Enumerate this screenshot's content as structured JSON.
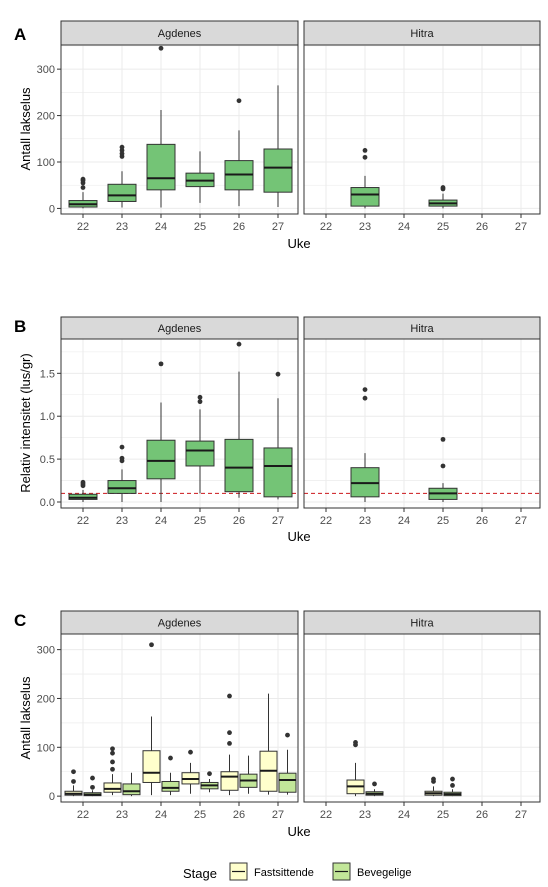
{
  "colors": {
    "green": "#74C476",
    "fastsittende": "#FFFFCC",
    "bevegelige": "#C2E699",
    "strip_fill": "#D9D9D9",
    "grid": "#EBEBEB",
    "threshold_line": "#CB181D"
  },
  "legend": {
    "title": "Stage",
    "items": [
      {
        "label": "Fastsittende",
        "color": "#FFFFCC"
      },
      {
        "label": "Bevegelige",
        "color": "#C2E699"
      }
    ]
  },
  "chart_data": [
    {
      "tag": "A",
      "type": "boxplot",
      "facets": [
        "Agdenes",
        "Hitra"
      ],
      "categories": [
        "22",
        "23",
        "24",
        "25",
        "26",
        "27"
      ],
      "xlabel": "Uke",
      "ylabel": "Antall lakselus",
      "ylim": [
        -12,
        352
      ],
      "yticks": [
        0,
        100,
        200,
        300
      ],
      "grid": true,
      "series": [
        {
          "color": "#74C476",
          "facet": "Agdenes",
          "boxes": [
            {
              "x": "22",
              "min": 0,
              "q1": 3,
              "median": 9,
              "q3": 17,
              "max": 35,
              "outliers": [
                45,
                55,
                60,
                63
              ]
            },
            {
              "x": "23",
              "min": 2,
              "q1": 15,
              "median": 28,
              "q3": 52,
              "max": 80,
              "outliers": [
                112,
                118,
                125,
                132
              ]
            },
            {
              "x": "24",
              "min": 2,
              "q1": 40,
              "median": 65,
              "q3": 138,
              "max": 212,
              "outliers": [
                345
              ]
            },
            {
              "x": "25",
              "min": 12,
              "q1": 47,
              "median": 60,
              "q3": 76,
              "max": 123,
              "outliers": []
            },
            {
              "x": "26",
              "min": 5,
              "q1": 40,
              "median": 73,
              "q3": 103,
              "max": 168,
              "outliers": [
                232
              ]
            },
            {
              "x": "27",
              "min": 3,
              "q1": 35,
              "median": 88,
              "q3": 128,
              "max": 265,
              "outliers": []
            }
          ]
        },
        {
          "color": "#74C476",
          "facet": "Hitra",
          "boxes": [
            {
              "x": "23",
              "min": 0,
              "q1": 5,
              "median": 30,
              "q3": 45,
              "max": 70,
              "outliers": [
                110,
                125
              ]
            },
            {
              "x": "25",
              "min": 0,
              "q1": 5,
              "median": 11,
              "q3": 18,
              "max": 32,
              "outliers": [
                42,
                45
              ]
            }
          ]
        }
      ]
    },
    {
      "tag": "B",
      "type": "boxplot",
      "facets": [
        "Agdenes",
        "Hitra"
      ],
      "categories": [
        "22",
        "23",
        "24",
        "25",
        "26",
        "27"
      ],
      "xlabel": "Uke",
      "ylabel": "Relativ intensitet (lus/gr)",
      "ylim": [
        -0.07,
        1.9
      ],
      "yticks": [
        0.0,
        0.5,
        1.0,
        1.5
      ],
      "ytick_labels": [
        "0.0",
        "0.5",
        "1.0",
        "1.5"
      ],
      "hline": 0.1,
      "grid": true,
      "series": [
        {
          "color": "#74C476",
          "facet": "Agdenes",
          "boxes": [
            {
              "x": "22",
              "min": 0.0,
              "q1": 0.03,
              "median": 0.05,
              "q3": 0.09,
              "max": 0.14,
              "outliers": [
                0.19,
                0.21,
                0.23
              ]
            },
            {
              "x": "23",
              "min": 0.0,
              "q1": 0.1,
              "median": 0.16,
              "q3": 0.25,
              "max": 0.38,
              "outliers": [
                0.48,
                0.51,
                0.64
              ]
            },
            {
              "x": "24",
              "min": 0.0,
              "q1": 0.27,
              "median": 0.48,
              "q3": 0.72,
              "max": 1.16,
              "outliers": [
                1.61
              ]
            },
            {
              "x": "25",
              "min": 0.1,
              "q1": 0.42,
              "median": 0.6,
              "q3": 0.71,
              "max": 1.08,
              "outliers": [
                1.17,
                1.22
              ]
            },
            {
              "x": "26",
              "min": 0.05,
              "q1": 0.12,
              "median": 0.4,
              "q3": 0.73,
              "max": 1.52,
              "outliers": [
                1.84
              ]
            },
            {
              "x": "27",
              "min": 0.03,
              "q1": 0.06,
              "median": 0.42,
              "q3": 0.63,
              "max": 1.21,
              "outliers": [
                1.49
              ]
            }
          ]
        },
        {
          "color": "#74C476",
          "facet": "Hitra",
          "boxes": [
            {
              "x": "23",
              "min": 0.0,
              "q1": 0.06,
              "median": 0.22,
              "q3": 0.4,
              "max": 0.57,
              "outliers": [
                1.21,
                1.31
              ]
            },
            {
              "x": "25",
              "min": 0.0,
              "q1": 0.03,
              "median": 0.1,
              "q3": 0.16,
              "max": 0.22,
              "outliers": [
                0.42,
                0.73
              ]
            }
          ]
        }
      ]
    },
    {
      "tag": "C",
      "type": "boxplot",
      "facets": [
        "Agdenes",
        "Hitra"
      ],
      "categories": [
        "22",
        "23",
        "24",
        "25",
        "26",
        "27"
      ],
      "xlabel": "Uke",
      "ylabel": "Antall lakselus",
      "ylim": [
        -12,
        332
      ],
      "yticks": [
        0,
        100,
        200,
        300
      ],
      "grid": true,
      "series": [
        {
          "name": "Fastsittende",
          "color": "#FFFFCC",
          "facet": "Agdenes",
          "boxes": [
            {
              "x": "22",
              "min": 0,
              "q1": 2,
              "median": 5,
              "q3": 10,
              "max": 22,
              "outliers": [
                30,
                50
              ]
            },
            {
              "x": "23",
              "min": 2,
              "q1": 8,
              "median": 15,
              "q3": 27,
              "max": 45,
              "outliers": [
                55,
                70,
                88,
                97
              ]
            },
            {
              "x": "24",
              "min": 2,
              "q1": 28,
              "median": 48,
              "q3": 93,
              "max": 163,
              "outliers": [
                310
              ]
            },
            {
              "x": "25",
              "min": 5,
              "q1": 25,
              "median": 35,
              "q3": 48,
              "max": 68,
              "outliers": [
                90
              ]
            },
            {
              "x": "26",
              "min": 2,
              "q1": 12,
              "median": 40,
              "q3": 50,
              "max": 85,
              "outliers": [
                108,
                130,
                205
              ]
            },
            {
              "x": "27",
              "min": 3,
              "q1": 10,
              "median": 52,
              "q3": 92,
              "max": 210,
              "outliers": []
            }
          ]
        },
        {
          "name": "Bevegelige",
          "color": "#C2E699",
          "facet": "Agdenes",
          "boxes": [
            {
              "x": "22",
              "min": 0,
              "q1": 1,
              "median": 3,
              "q3": 7,
              "max": 12,
              "outliers": [
                18,
                37
              ]
            },
            {
              "x": "23",
              "min": 0,
              "q1": 3,
              "median": 10,
              "q3": 25,
              "max": 48,
              "outliers": []
            },
            {
              "x": "24",
              "min": 2,
              "q1": 10,
              "median": 17,
              "q3": 30,
              "max": 48,
              "outliers": [
                78
              ]
            },
            {
              "x": "25",
              "min": 8,
              "q1": 15,
              "median": 22,
              "q3": 28,
              "max": 35,
              "outliers": [
                46
              ]
            },
            {
              "x": "26",
              "min": 5,
              "q1": 18,
              "median": 32,
              "q3": 45,
              "max": 83,
              "outliers": []
            },
            {
              "x": "27",
              "min": 3,
              "q1": 8,
              "median": 33,
              "q3": 47,
              "max": 95,
              "outliers": [
                125
              ]
            }
          ]
        },
        {
          "name": "Fastsittende",
          "color": "#FFFFCC",
          "facet": "Hitra",
          "boxes": [
            {
              "x": "23",
              "min": 0,
              "q1": 5,
              "median": 20,
              "q3": 33,
              "max": 68,
              "outliers": [
                105,
                110
              ]
            },
            {
              "x": "25",
              "min": 0,
              "q1": 2,
              "median": 6,
              "q3": 10,
              "max": 20,
              "outliers": [
                30,
                35
              ]
            }
          ]
        },
        {
          "name": "Bevegelige",
          "color": "#C2E699",
          "facet": "Hitra",
          "boxes": [
            {
              "x": "23",
              "min": 0,
              "q1": 2,
              "median": 5,
              "q3": 9,
              "max": 14,
              "outliers": [
                25
              ]
            },
            {
              "x": "25",
              "min": 0,
              "q1": 1,
              "median": 4,
              "q3": 8,
              "max": 14,
              "outliers": [
                22,
                35
              ]
            }
          ]
        }
      ]
    }
  ]
}
